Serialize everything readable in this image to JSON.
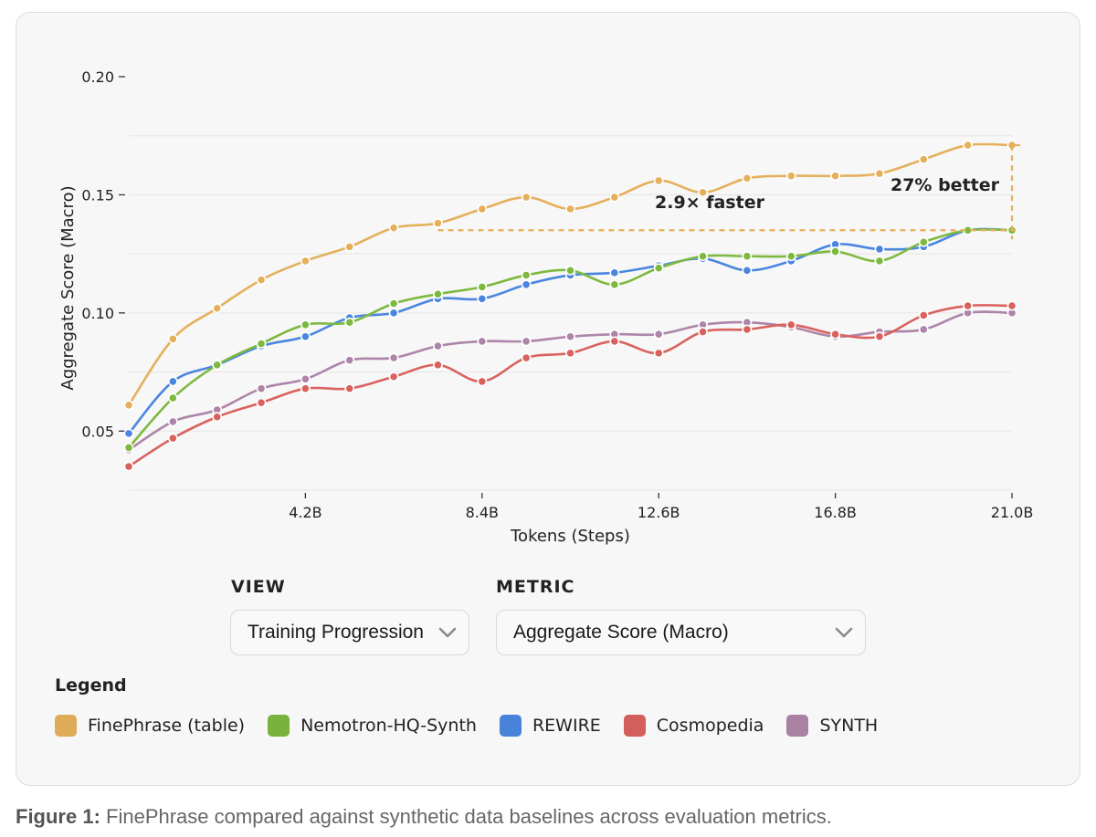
{
  "chart_data": {
    "type": "line",
    "xlabel": "Tokens (Steps)",
    "ylabel": "Aggregate Score (Macro)",
    "xlim": [
      0,
      21.0
    ],
    "ylim": [
      0.025,
      0.2
    ],
    "x_ticks": [
      4.2,
      8.4,
      12.6,
      16.8,
      21.0
    ],
    "x_tick_labels": [
      "4.2B",
      "8.4B",
      "12.6B",
      "16.8B",
      "21.0B"
    ],
    "y_ticks": [
      0.05,
      0.1,
      0.15,
      0.2
    ],
    "y_tick_labels": [
      "0.05",
      "0.10",
      "0.15",
      "0.20"
    ],
    "x": [
      0,
      1.05,
      2.1,
      3.15,
      4.2,
      5.25,
      6.3,
      7.35,
      8.4,
      9.45,
      10.5,
      11.55,
      12.6,
      13.65,
      14.7,
      15.75,
      16.8,
      17.85,
      18.9,
      19.95,
      21.0
    ],
    "series": [
      {
        "name": "FinePhrase (table)",
        "color": "#e5b05c",
        "values": [
          0.061,
          0.089,
          0.102,
          0.114,
          0.122,
          0.128,
          0.136,
          0.138,
          0.144,
          0.149,
          0.144,
          0.149,
          0.156,
          0.151,
          0.157,
          0.158,
          0.158,
          0.159,
          0.165,
          0.171,
          0.171
        ]
      },
      {
        "name": "Nemotron-HQ-Synth",
        "color": "#7db93f",
        "values": [
          0.043,
          0.064,
          0.078,
          0.087,
          0.095,
          0.096,
          0.104,
          0.108,
          0.111,
          0.116,
          0.118,
          0.112,
          0.119,
          0.124,
          0.124,
          0.124,
          0.126,
          0.122,
          0.13,
          0.135,
          0.135
        ]
      },
      {
        "name": "REWIRE",
        "color": "#4a86e0",
        "values": [
          0.049,
          0.071,
          0.078,
          0.086,
          0.09,
          0.098,
          0.1,
          0.106,
          0.106,
          0.112,
          0.116,
          0.117,
          0.12,
          0.123,
          0.118,
          0.122,
          0.129,
          0.127,
          0.128,
          0.135,
          0.135
        ]
      },
      {
        "name": "Cosmopedia",
        "color": "#d9625e",
        "values": [
          0.035,
          0.047,
          0.056,
          0.062,
          0.068,
          0.068,
          0.073,
          0.078,
          0.071,
          0.081,
          0.083,
          0.088,
          0.083,
          0.092,
          0.093,
          0.095,
          0.091,
          0.09,
          0.099,
          0.103,
          0.103
        ]
      },
      {
        "name": "SYNTH",
        "color": "#ad85a8",
        "values": [
          0.042,
          0.054,
          0.059,
          0.068,
          0.072,
          0.08,
          0.081,
          0.086,
          0.088,
          0.088,
          0.09,
          0.091,
          0.091,
          0.095,
          0.096,
          0.094,
          0.09,
          0.092,
          0.093,
          0.1,
          0.1
        ]
      }
    ],
    "annotations": [
      {
        "text": "2.9× faster",
        "type": "horizontal-gap",
        "x_from": 7.35,
        "x_to": 21.0,
        "y": 0.135
      },
      {
        "text": "27% better",
        "type": "vertical-gap",
        "x": 21.0,
        "y_from": 0.135,
        "y_to": 0.171
      }
    ]
  },
  "controls": {
    "view_label": "VIEW",
    "view_value": "Training Progression",
    "metric_label": "METRIC",
    "metric_value": "Aggregate Score (Macro)"
  },
  "legend": {
    "title": "Legend",
    "items": [
      {
        "label": "FinePhrase (table)",
        "color": "#e5b05c"
      },
      {
        "label": "Nemotron-HQ-Synth",
        "color": "#7db93f"
      },
      {
        "label": "REWIRE",
        "color": "#4a86e0"
      },
      {
        "label": "Cosmopedia",
        "color": "#d9625e"
      },
      {
        "label": "SYNTH",
        "color": "#ad85a8"
      }
    ]
  },
  "caption": {
    "prefix": "Figure 1:",
    "text": " FinePhrase compared against synthetic data baselines across evaluation metrics."
  }
}
